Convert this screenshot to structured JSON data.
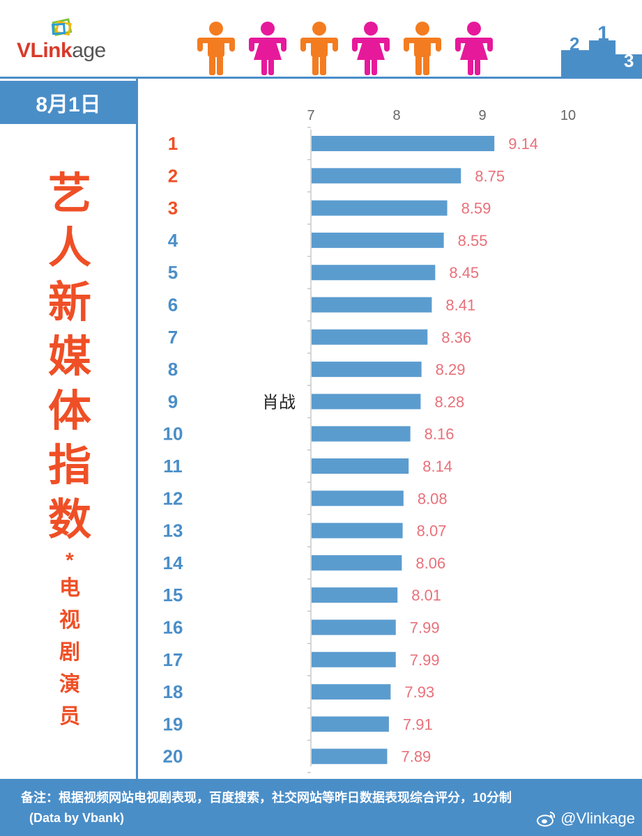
{
  "header": {
    "logo_v": "V",
    "logo_rest_bold": "Link",
    "logo_rest": "age",
    "podium_labels": [
      "2",
      "1",
      "3"
    ]
  },
  "sidebar": {
    "date": "8月1日",
    "title_chars": [
      "艺",
      "人",
      "新",
      "媒",
      "体",
      "指",
      "数"
    ],
    "star": "*",
    "subtitle_chars": [
      "电",
      "视",
      "剧",
      "演",
      "员"
    ]
  },
  "footer": {
    "note": "备注：根据视频网站电视剧表现，百度搜索，社交网站等昨日数据表现综合评分，10分制",
    "source": "(Data by Vbank)",
    "handle": "@Vlinkage"
  },
  "colors": {
    "bar": "#5b9ccf",
    "value_label": "#e8707a",
    "rank_top3": "#ef4f26",
    "rank_other": "#4a8ec8",
    "accent": "#4a8ec8"
  },
  "chart_data": {
    "type": "bar",
    "orientation": "horizontal",
    "categories": [
      "1",
      "2",
      "3",
      "4",
      "5",
      "6",
      "7",
      "8",
      "9",
      "10",
      "11",
      "12",
      "13",
      "14",
      "15",
      "16",
      "17",
      "18",
      "19",
      "20"
    ],
    "names": [
      "",
      "",
      "",
      "",
      "",
      "",
      "",
      "",
      "肖战",
      "",
      "",
      "",
      "",
      "",
      "",
      "",
      "",
      "",
      "",
      ""
    ],
    "values": [
      9.14,
      8.75,
      8.59,
      8.55,
      8.45,
      8.41,
      8.36,
      8.29,
      8.28,
      8.16,
      8.14,
      8.08,
      8.07,
      8.06,
      8.01,
      7.99,
      7.99,
      7.93,
      7.91,
      7.89
    ],
    "value_labels": [
      "9.14",
      "8.75",
      "8.59",
      "8.55",
      "8.45",
      "8.41",
      "8.36",
      "8.29",
      "8.28",
      "8.16",
      "8.14",
      "8.08",
      "8.07",
      "8.06",
      "8.01",
      "7.99",
      "7.99",
      "7.93",
      "7.91",
      "7.89"
    ],
    "xlim": [
      7,
      10
    ],
    "xticks": [
      "7",
      "8",
      "9",
      "10"
    ],
    "grid": false,
    "title": "",
    "xlabel": "",
    "ylabel": ""
  }
}
